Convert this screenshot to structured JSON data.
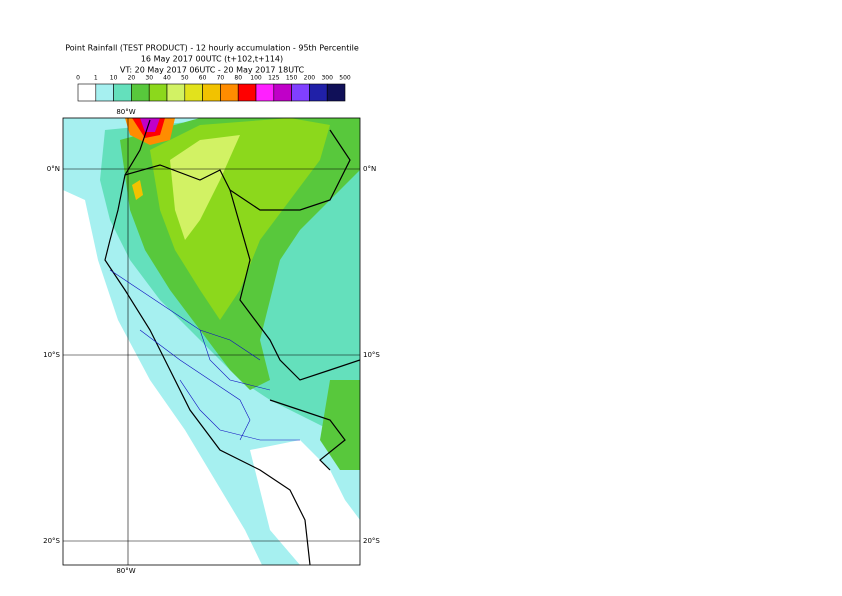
{
  "header": {
    "title": "Point Rainfall (TEST PRODUCT) - 12 hourly accumulation - 95th Percentile",
    "base_time": "16 May 2017 00UTC (t+102,t+114)",
    "valid_time": "VT: 20 May 2017 06UTC - 20 May 2017 18UTC"
  },
  "legend": {
    "ticks": [
      0,
      1,
      10,
      20,
      30,
      40,
      50,
      60,
      70,
      80,
      100,
      125,
      150,
      200,
      300,
      500
    ],
    "colors": [
      "#ffffff",
      "#a6f0f0",
      "#64e0bc",
      "#58c83c",
      "#8cd81c",
      "#d2f264",
      "#e2e21c",
      "#f2c200",
      "#ff8c00",
      "#ff0000",
      "#ff20ff",
      "#c000c8",
      "#8040ff",
      "#2020a8",
      "#101058"
    ]
  },
  "map": {
    "lon_label_top": "80°W",
    "lon_label_bottom": "80°W",
    "lat_labels": [
      "0°N",
      "10°S",
      "20°S"
    ]
  }
}
